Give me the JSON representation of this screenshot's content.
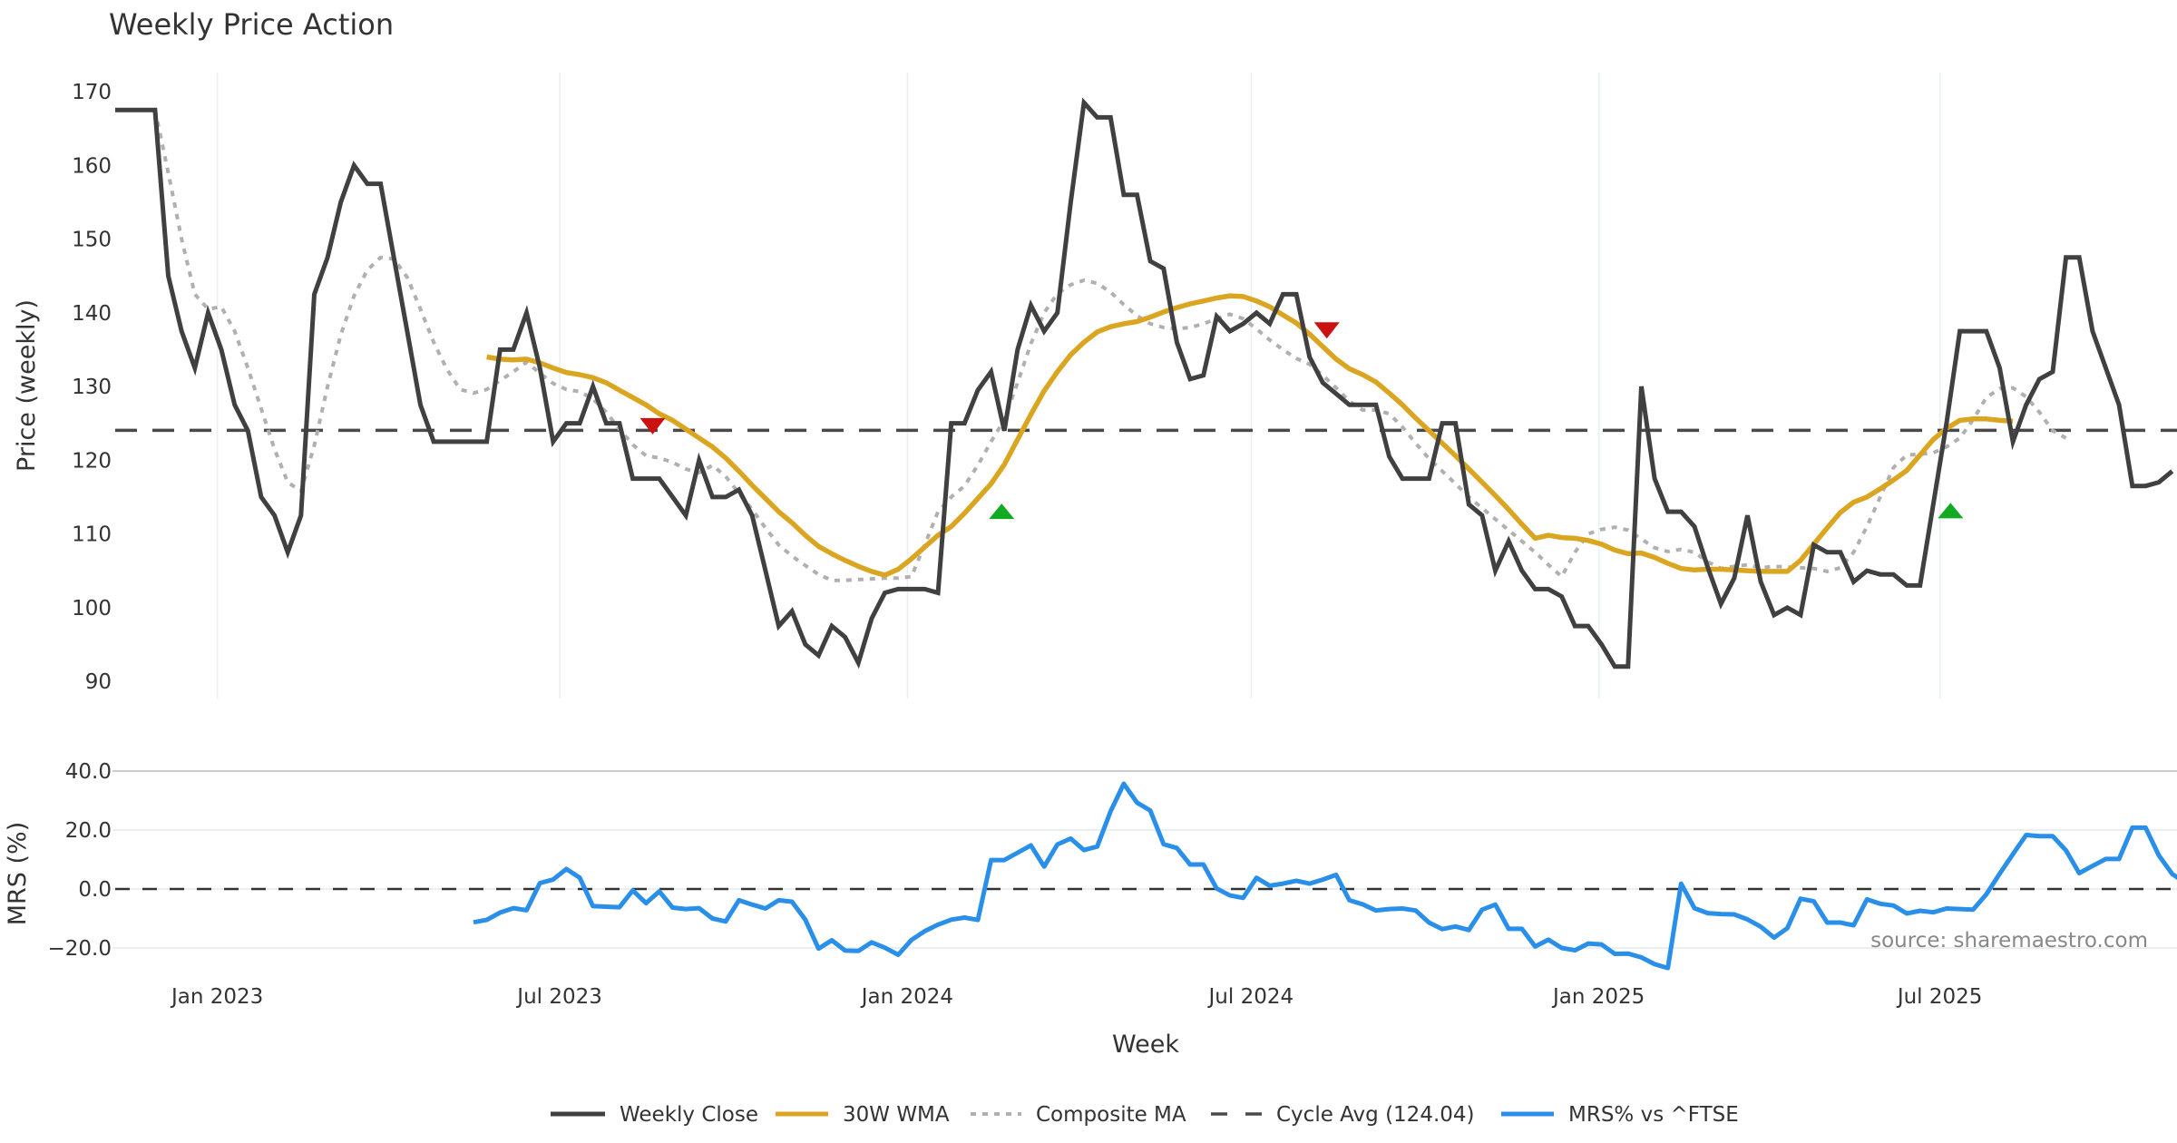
{
  "chart_data": [
    {
      "type": "line",
      "title": "Weekly Price Action",
      "xlabel": "Week",
      "ylabel": "Price (weekly)",
      "ylim": [
        88,
        171
      ],
      "yticks": [
        90,
        100,
        110,
        120,
        130,
        140,
        150,
        160,
        170
      ],
      "xticks": [
        {
          "label": "Jan 2023",
          "week": 7.7
        },
        {
          "label": "Jul 2023",
          "week": 33.5
        },
        {
          "label": "Jan 2024",
          "week": 59.7
        },
        {
          "label": "Jul 2024",
          "week": 85.6
        },
        {
          "label": "Jan 2025",
          "week": 111.8
        },
        {
          "label": "Jul 2025",
          "week": 137.5
        }
      ],
      "grid": "vertical",
      "series": [
        {
          "name": "Weekly Close",
          "color": "#404040",
          "style": "solid",
          "start_week": 0,
          "values": [
            167.5,
            167.5,
            167.5,
            167.5,
            145,
            137.5,
            132.5,
            140,
            135,
            127.5,
            124,
            115,
            112.5,
            107.5,
            112.5,
            142.5,
            147.5,
            155,
            160,
            157.5,
            157.5,
            147.5,
            137.5,
            127.5,
            122.5,
            122.5,
            122.5,
            122.5,
            122.5,
            135,
            135,
            140,
            132.5,
            122.5,
            125,
            125,
            130,
            125,
            125,
            117.5,
            117.5,
            117.5,
            115,
            112.5,
            120,
            115,
            115,
            116,
            112.5,
            105,
            97.5,
            99.5,
            95,
            93.5,
            97.5,
            96,
            92.5,
            98.5,
            102,
            102.5,
            102.5,
            102.5,
            102,
            125,
            125,
            129.5,
            132,
            124,
            135,
            141,
            137.5,
            140,
            155,
            168.5,
            166.5,
            166.5,
            156,
            156,
            147,
            146,
            136,
            131,
            131.5,
            139.5,
            137.5,
            138.5,
            140,
            138.5,
            142.5,
            142.5,
            134,
            130.5,
            129,
            127.5,
            127.5,
            127.5,
            120.5,
            117.5,
            117.5,
            117.5,
            125,
            125,
            114,
            112.5,
            105,
            109,
            105,
            102.5,
            102.5,
            101.5,
            97.5,
            97.5,
            95,
            92,
            92,
            130,
            117.5,
            113,
            113,
            111,
            105.5,
            100.5,
            104,
            112.5,
            103.5,
            99,
            100,
            99,
            108.5,
            107.5,
            107.5,
            103.5,
            105,
            104.5,
            104.5,
            103,
            103,
            114,
            125,
            137.5,
            137.5,
            137.5,
            132.5,
            122.5,
            127.5,
            131,
            132,
            147.5,
            147.5,
            137.5,
            132.5,
            127.5,
            116.5,
            116.5,
            117,
            118.5
          ]
        },
        {
          "name": "30W WMA",
          "color": "#DAA520",
          "style": "solid",
          "start_week": 28,
          "values": [
            134,
            133.7,
            133.6,
            133.7,
            133.2,
            132.5,
            131.9,
            131.6,
            131.2,
            130.5,
            129.5,
            128.5,
            127.5,
            126.3,
            125.4,
            124.2,
            123,
            121.8,
            120.3,
            118.5,
            116.6,
            114.8,
            113,
            111.5,
            109.8,
            108.3,
            107.3,
            106.4,
            105.6,
            104.9,
            104.4,
            105.2,
            106.6,
            108.2,
            109.8,
            111,
            112.8,
            114.8,
            116.8,
            119.4,
            122.8,
            126.2,
            129.4,
            132,
            134.3,
            136,
            137.4,
            138.1,
            138.5,
            138.8,
            139.4,
            140.1,
            140.7,
            141.2,
            141.6,
            142,
            142.3,
            142.2,
            141.6,
            140.8,
            139.7,
            138.6,
            137.1,
            135.4,
            133.7,
            132.4,
            131.6,
            130.6,
            129.1,
            127.5,
            125.7,
            124,
            122.3,
            120.6,
            118.8,
            117,
            115.2,
            113.3,
            111.3,
            109.4,
            109.8,
            109.5,
            109.4,
            109.1,
            108.6,
            107.8,
            107.3,
            107.4,
            106.8,
            106,
            105.3,
            105.1,
            105.2,
            105.2,
            105.1,
            105,
            104.9,
            104.9,
            104.9,
            106.4,
            108.6,
            110.8,
            112.9,
            114.3,
            115,
            116.1,
            117.3,
            118.6,
            120.7,
            122.8,
            124.3,
            125.4,
            125.6,
            125.6,
            125.4,
            125.3
          ]
        },
        {
          "name": "Composite MA",
          "color": "#B0B0B0",
          "style": "dotted",
          "start_week": 3,
          "values": [
            167.5,
            159,
            150,
            142.5,
            140.5,
            140.8,
            137.5,
            132.5,
            127,
            121.5,
            117,
            115.8,
            122,
            130,
            137,
            142.3,
            145.8,
            147.5,
            147.3,
            144.8,
            140.5,
            136,
            132.3,
            129.6,
            129.1,
            129.6,
            130.8,
            132,
            133.3,
            131.8,
            130.4,
            129.6,
            129.3,
            128.3,
            126.5,
            124.2,
            122.1,
            120.6,
            120.3,
            119.7,
            118.8,
            118.3,
            119.3,
            117.8,
            115.5,
            113.3,
            110.8,
            108.5,
            107,
            105.7,
            104.5,
            103.7,
            103.7,
            103.8,
            103.9,
            104,
            104,
            104.2,
            108.5,
            113,
            115,
            116.5,
            119.3,
            122.5,
            125.5,
            130.5,
            135.8,
            140,
            142.6,
            143.8,
            144.4,
            144,
            142.8,
            141.1,
            139.6,
            138.5,
            138,
            137.8,
            138,
            138.5,
            139.2,
            139.8,
            139.2,
            137.8,
            136.3,
            135,
            133.8,
            133,
            131.5,
            129.8,
            128,
            126.8,
            126.8,
            126.3,
            124.5,
            122.3,
            120.2,
            118.5,
            116.8,
            115,
            113.5,
            112,
            110.5,
            109,
            107.5,
            105.8,
            104.2,
            107.5,
            110,
            110.6,
            110.9,
            110.5,
            109.3,
            108.1,
            107.6,
            107.9,
            107.5,
            106.2,
            105.3,
            105.6,
            105.8,
            105.4,
            105.6,
            105.5,
            105.4,
            105.3,
            104.9,
            105.4,
            107.5,
            111,
            115,
            119,
            120.7,
            120.8,
            121,
            121.8,
            123,
            125.5,
            128.5,
            129.7,
            129.8,
            128.6,
            126.5,
            124,
            123
          ]
        },
        {
          "name": "Cycle Avg (124.04)",
          "color": "#4a4a4a",
          "style": "dashed",
          "constant": 124.04
        }
      ],
      "markers": [
        {
          "type": "sell",
          "shape": "triangle-down",
          "color": "#CC1111",
          "week": 40.5,
          "value": 124.6
        },
        {
          "type": "buy",
          "shape": "triangle-up",
          "color": "#11AA22",
          "week": 66.8,
          "value": 113.0
        },
        {
          "type": "sell",
          "shape": "triangle-down",
          "color": "#CC1111",
          "week": 91.3,
          "value": 137.6
        },
        {
          "type": "buy",
          "shape": "triangle-up",
          "color": "#11AA22",
          "week": 138.3,
          "value": 113.1
        }
      ]
    },
    {
      "type": "line",
      "ylabel": "MRS (%)",
      "xlabel": "Week",
      "ylim": [
        -28,
        43
      ],
      "yticks": [
        "−20.0",
        "0.0",
        "20.0",
        "40.0"
      ],
      "ytick_values": [
        -20,
        0,
        20,
        40
      ],
      "grid": "horizontal",
      "series": [
        {
          "name": "MRS% vs ^FTSE",
          "color": "#2A8FE8",
          "style": "solid",
          "start_week": 27,
          "values": [
            -11.3,
            -10.5,
            -8,
            -6.5,
            -7.2,
            2,
            3.2,
            6.8,
            3.8,
            -5.8,
            -6,
            -6.2,
            -0.5,
            -4.8,
            -0.8,
            -6.3,
            -6.8,
            -6.5,
            -10,
            -11,
            -3.8,
            -5.3,
            -6.6,
            -3.8,
            -4.3,
            -10.4,
            -20.2,
            -17.4,
            -20.9,
            -21,
            -18.1,
            -19.9,
            -22.3,
            -17.3,
            -14.3,
            -12.1,
            -10.4,
            -9.7,
            -10.5,
            9.8,
            9.8,
            12.3,
            14.8,
            7.6,
            15.1,
            17.1,
            13.2,
            14.4,
            26.3,
            35.7,
            29.3,
            26.6,
            15.2,
            13.9,
            8.3,
            8.3,
            0.2,
            -2.2,
            -3,
            3.8,
            1.1,
            1.8,
            2.8,
            1.8,
            3.2,
            4.8,
            -3.8,
            -5.2,
            -7.3,
            -6.8,
            -6.6,
            -7.3,
            -11.4,
            -13.6,
            -12.7,
            -13.9,
            -7,
            -5.3,
            -13.5,
            -13.5,
            -19.5,
            -17.2,
            -20,
            -20.8,
            -18.5,
            -18.8,
            -22,
            -21.9,
            -23.2,
            -25.5,
            -26.8,
            1.8,
            -6.5,
            -8.2,
            -8.5,
            -8.6,
            -10.3,
            -12.8,
            -16.5,
            -13.3,
            -3.3,
            -4.2,
            -11.4,
            -11.4,
            -12.3,
            -3.5,
            -5,
            -5.6,
            -8.3,
            -7.4,
            -7.9,
            -6.6,
            -6.8,
            -7,
            -1.8,
            5.2,
            11.8,
            18.3,
            17.9,
            17.9,
            13.1,
            5.4,
            7.8,
            10.2,
            10.2,
            20.8,
            20.8,
            11.4,
            5.1,
            2.1,
            -6.1,
            -8.6,
            -8.6,
            -7.3
          ]
        },
        {
          "name": "Zero line",
          "color": "#333333",
          "style": "dashed",
          "constant": 0
        }
      ],
      "annotation": "source: sharemaestro.com"
    }
  ],
  "legend": {
    "placement": "bottom-center",
    "items": [
      {
        "label": "Weekly Close",
        "color": "#404040",
        "style": "solid"
      },
      {
        "label": "30W WMA",
        "color": "#DAA520",
        "style": "solid"
      },
      {
        "label": "Composite MA",
        "color": "#B0B0B0",
        "style": "dotted"
      },
      {
        "label": "Cycle Avg (124.04)",
        "color": "#4a4a4a",
        "style": "dashed"
      },
      {
        "label": "MRS% vs ^FTSE",
        "color": "#2A8FE8",
        "style": "solid"
      }
    ]
  }
}
